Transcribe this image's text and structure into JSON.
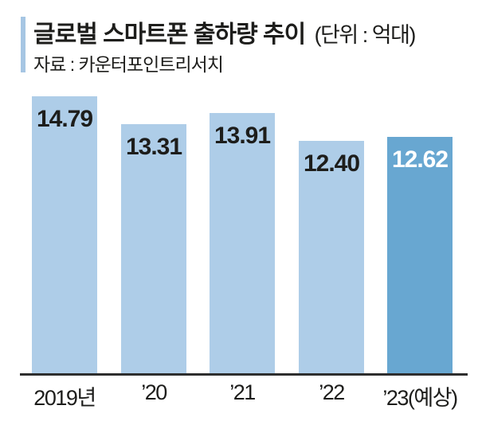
{
  "header": {
    "title": "글로벌 스마트폰 출하량 추이",
    "unit": "(단위 : 억대)",
    "source": "자료 : 카운터포인트리서치"
  },
  "chart_data": {
    "type": "bar",
    "title": "글로벌 스마트폰 출하량 추이",
    "unit_label": "(단위 : 억대)",
    "source": "자료 : 카운터포인트리서치",
    "categories": [
      "2019년",
      "’20",
      "’21",
      "’22",
      "’23(예상)"
    ],
    "values": [
      14.79,
      13.31,
      13.91,
      12.4,
      12.62
    ],
    "value_labels": [
      "14.79",
      "13.31",
      "13.91",
      "12.40",
      "12.62"
    ],
    "highlight_index": 4,
    "highlight_meaning": "forecast",
    "ylim": [
      0,
      15.5
    ],
    "grid": false,
    "legend": false,
    "value_labels_position": "inside-top",
    "colors": {
      "bar_default": "#aecde8",
      "bar_highlight": "#68a7d1",
      "accent_bar": "#a6c6e3",
      "text": "#1d1d1b",
      "axis_line": "#2e2e2e",
      "value_label_default": "#1d1d1b",
      "value_label_highlight": "#ffffff"
    }
  }
}
